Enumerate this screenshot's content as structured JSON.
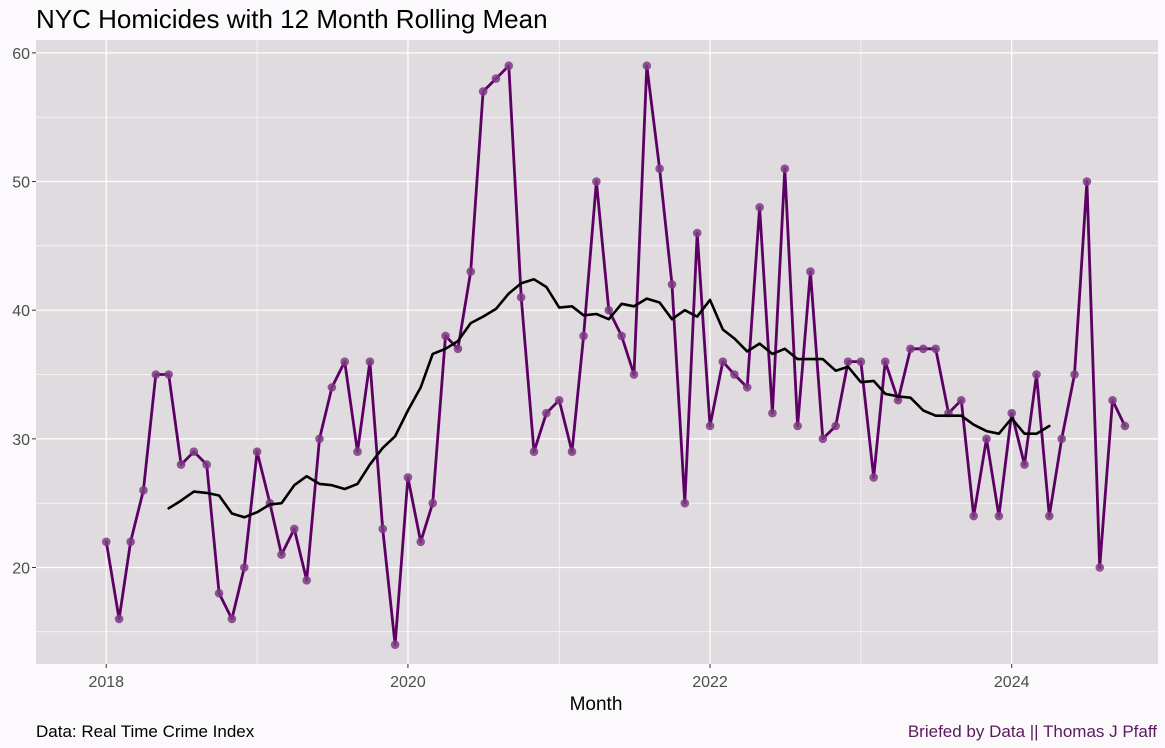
{
  "chart_data": {
    "type": "line",
    "title": "NYC Homicides with 12 Month Rolling Mean",
    "xlabel": "Month",
    "ylabel": "",
    "caption_left": "Data: Real Time Crime Index",
    "caption_right": "Briefed by Data || Thomas J Pfaff",
    "x_range": [
      "2017-07-15",
      "2024-12-20"
    ],
    "ylim": [
      12.5,
      61
    ],
    "x_ticks": [
      {
        "date": "2018-01-01",
        "label": "2018"
      },
      {
        "date": "2020-01-01",
        "label": "2020"
      },
      {
        "date": "2022-01-01",
        "label": "2022"
      },
      {
        "date": "2024-01-01",
        "label": "2024"
      }
    ],
    "y_ticks": [
      20,
      30,
      40,
      50,
      60
    ],
    "grid": true,
    "colors": {
      "panel": "#DFDBDF",
      "grid": "#FFFFFF",
      "monthly_line": "#5C0063",
      "monthly_point": "#7E3A84",
      "rolling_line": "#000000",
      "caption_right": "#5C1A5E"
    },
    "series": [
      {
        "role": "monthly",
        "dates": [
          "2018-01",
          "2018-02",
          "2018-03",
          "2018-04",
          "2018-05",
          "2018-06",
          "2018-07",
          "2018-08",
          "2018-09",
          "2018-10",
          "2018-11",
          "2018-12",
          "2019-01",
          "2019-02",
          "2019-03",
          "2019-04",
          "2019-05",
          "2019-06",
          "2019-07",
          "2019-08",
          "2019-09",
          "2019-10",
          "2019-11",
          "2019-12",
          "2020-01",
          "2020-02",
          "2020-03",
          "2020-04",
          "2020-05",
          "2020-06",
          "2020-07",
          "2020-08",
          "2020-09",
          "2020-10",
          "2020-11",
          "2020-12",
          "2021-01",
          "2021-02",
          "2021-03",
          "2021-04",
          "2021-05",
          "2021-06",
          "2021-07",
          "2021-08",
          "2021-09",
          "2021-10",
          "2021-11",
          "2021-12",
          "2022-01",
          "2022-02",
          "2022-03",
          "2022-04",
          "2022-05",
          "2022-06",
          "2022-07",
          "2022-08",
          "2022-09",
          "2022-10",
          "2022-11",
          "2022-12",
          "2023-01",
          "2023-02",
          "2023-03",
          "2023-04",
          "2023-05",
          "2023-06",
          "2023-07",
          "2023-08",
          "2023-09",
          "2023-10",
          "2023-11",
          "2023-12",
          "2024-01",
          "2024-02",
          "2024-03",
          "2024-04",
          "2024-05",
          "2024-06",
          "2024-07",
          "2024-08",
          "2024-09",
          "2024-10"
        ],
        "values": [
          22,
          16,
          22,
          26,
          35,
          35,
          28,
          29,
          28,
          18,
          16,
          20,
          29,
          25,
          21,
          23,
          19,
          30,
          34,
          36,
          29,
          36,
          23,
          14,
          27,
          22,
          25,
          38,
          37,
          43,
          57,
          58,
          59,
          41,
          29,
          32,
          33,
          29,
          38,
          50,
          40,
          38,
          35,
          59,
          51,
          42,
          25,
          46,
          31,
          36,
          35,
          34,
          48,
          32,
          51,
          31,
          43,
          30,
          31,
          36,
          36,
          27,
          36,
          33,
          37,
          37,
          37,
          32,
          33,
          24,
          30,
          24,
          32,
          28,
          35,
          24,
          30,
          35,
          50,
          20,
          33,
          31
        ]
      },
      {
        "role": "rolling_mean",
        "dates": [
          "2018-06",
          "2018-07",
          "2018-08",
          "2018-09",
          "2018-10",
          "2018-11",
          "2018-12",
          "2019-01",
          "2019-02",
          "2019-03",
          "2019-04",
          "2019-05",
          "2019-06",
          "2019-07",
          "2019-08",
          "2019-09",
          "2019-10",
          "2019-11",
          "2019-12",
          "2020-01",
          "2020-02",
          "2020-03",
          "2020-04",
          "2020-05",
          "2020-06",
          "2020-07",
          "2020-08",
          "2020-09",
          "2020-10",
          "2020-11",
          "2020-12",
          "2021-01",
          "2021-02",
          "2021-03",
          "2021-04",
          "2021-05",
          "2021-06",
          "2021-07",
          "2021-08",
          "2021-09",
          "2021-10",
          "2021-11",
          "2021-12",
          "2022-01",
          "2022-02",
          "2022-03",
          "2022-04",
          "2022-05",
          "2022-06",
          "2022-07",
          "2022-08",
          "2022-09",
          "2022-10",
          "2022-11",
          "2022-12",
          "2023-01",
          "2023-02",
          "2023-03",
          "2023-04",
          "2023-05",
          "2023-06",
          "2023-07",
          "2023-08",
          "2023-09",
          "2023-10",
          "2023-11",
          "2023-12",
          "2024-01",
          "2024-02",
          "2024-03",
          "2024-04"
        ],
        "values": [
          24.6,
          25.2,
          25.9,
          25.8,
          25.6,
          24.2,
          23.9,
          24.3,
          24.9,
          25.0,
          26.4,
          27.1,
          26.5,
          26.4,
          26.1,
          26.5,
          28.0,
          29.3,
          30.2,
          32.2,
          34.0,
          36.6,
          37.0,
          37.6,
          39.0,
          39.5,
          40.1,
          41.3,
          42.1,
          42.4,
          41.8,
          40.2,
          40.3,
          39.6,
          39.7,
          39.3,
          40.5,
          40.3,
          40.9,
          40.6,
          39.3,
          40.0,
          39.5,
          40.8,
          38.5,
          37.8,
          36.8,
          37.4,
          36.6,
          37.0,
          36.2,
          36.2,
          36.2,
          35.3,
          35.6,
          34.4,
          34.5,
          33.5,
          33.3,
          33.2,
          32.2,
          31.8,
          31.8,
          31.8,
          31.1,
          30.6,
          30.4,
          31.6,
          30.4,
          30.4,
          31.0
        ]
      }
    ]
  }
}
